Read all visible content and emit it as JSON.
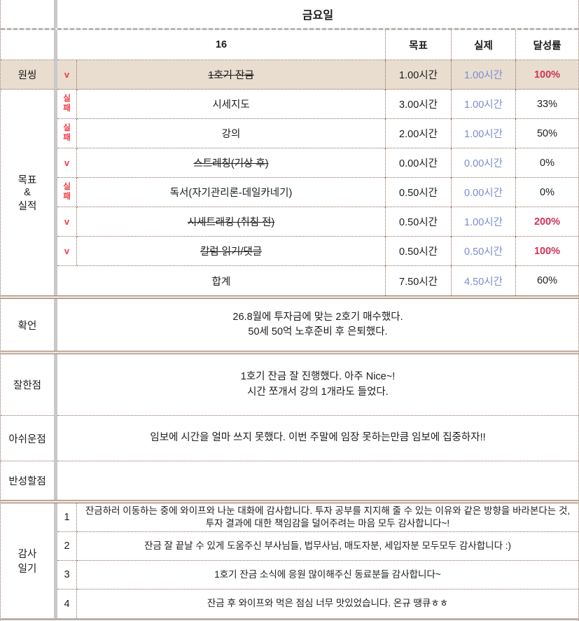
{
  "header": {
    "day_title": "금요일"
  },
  "goals": {
    "date_label": "16",
    "columns": {
      "goal": "목표",
      "actual": "실제",
      "rate": "달성률"
    },
    "labels": {
      "one_thing": "원씽",
      "goals_results": "목표\n&\n실적"
    },
    "rows": [
      {
        "check": "v",
        "name": "1호기 잔금",
        "goal": "1.00시간",
        "actual": "1.00시간",
        "rate": "100%"
      },
      {
        "check": "실패",
        "name": "시세지도",
        "goal": "3.00시간",
        "actual": "1.00시간",
        "rate": "33%"
      },
      {
        "check": "실패",
        "name": "강의",
        "goal": "2.00시간",
        "actual": "1.00시간",
        "rate": "50%"
      },
      {
        "check": "v",
        "name": "스트레칭(기상 후)",
        "goal": "0.00시간",
        "actual": "0.00시간",
        "rate": "0%"
      },
      {
        "check": "실패",
        "name": "독서(자기관리론-데일카네기)",
        "goal": "0.50시간",
        "actual": "0.00시간",
        "rate": "0%"
      },
      {
        "check": "v",
        "name": "시세트래킹 (취침 전)",
        "goal": "0.50시간",
        "actual": "1.00시간",
        "rate": "200%"
      },
      {
        "check": "v",
        "name": "칼럼 읽기/댓글",
        "goal": "0.50시간",
        "actual": "0.50시간",
        "rate": "100%"
      }
    ],
    "total": {
      "name": "합계",
      "goal": "7.50시간",
      "actual": "4.50시간",
      "rate": "60%"
    }
  },
  "affirmation": {
    "label": "확언",
    "text": "26.8월에 투자금에 맞는 2호기 매수했다.\n50세 50억 노후준비 후 은퇴했다."
  },
  "well_done": {
    "label": "잘한점",
    "text": "1호기 잔금 잘 진행했다. 아주 Nice~!\n시간 쪼개서 강의 1개라도 들었다."
  },
  "regret": {
    "label": "아쉬운점",
    "text": "임보에 시간을 얼마 쓰지 못했다. 이번 주말에 임장 못하는만큼 임보에 집중하자!!"
  },
  "reflection": {
    "label": "반성할점",
    "text": ""
  },
  "gratitude": {
    "label": "감사\n일기",
    "entries": [
      {
        "no": "1",
        "text": "잔금하러 이동하는 중에 와이프와 나눈 대화에 감사합니다. 투자 공부를 지지해 줄 수 있는 이유와 같은 방향을 바라본다는 것, 투자 결과에 대한 책임감을 덜어주려는 마음 모두 감사합니다~!"
      },
      {
        "no": "2",
        "text": "잔금 잘 끝날 수 있게 도움주신 부사님들, 법무사님, 매도자분, 세입자분 모두모두 감사합니다 :)"
      },
      {
        "no": "3",
        "text": "1호기 잔금 소식에 응원 많이해주신 동료분들 감사합니다~"
      },
      {
        "no": "4",
        "text": "잔금 후 와이프와 먹은 점심 너무 맛있었습니다. 온규 땡큐ㅎㅎ"
      }
    ]
  }
}
